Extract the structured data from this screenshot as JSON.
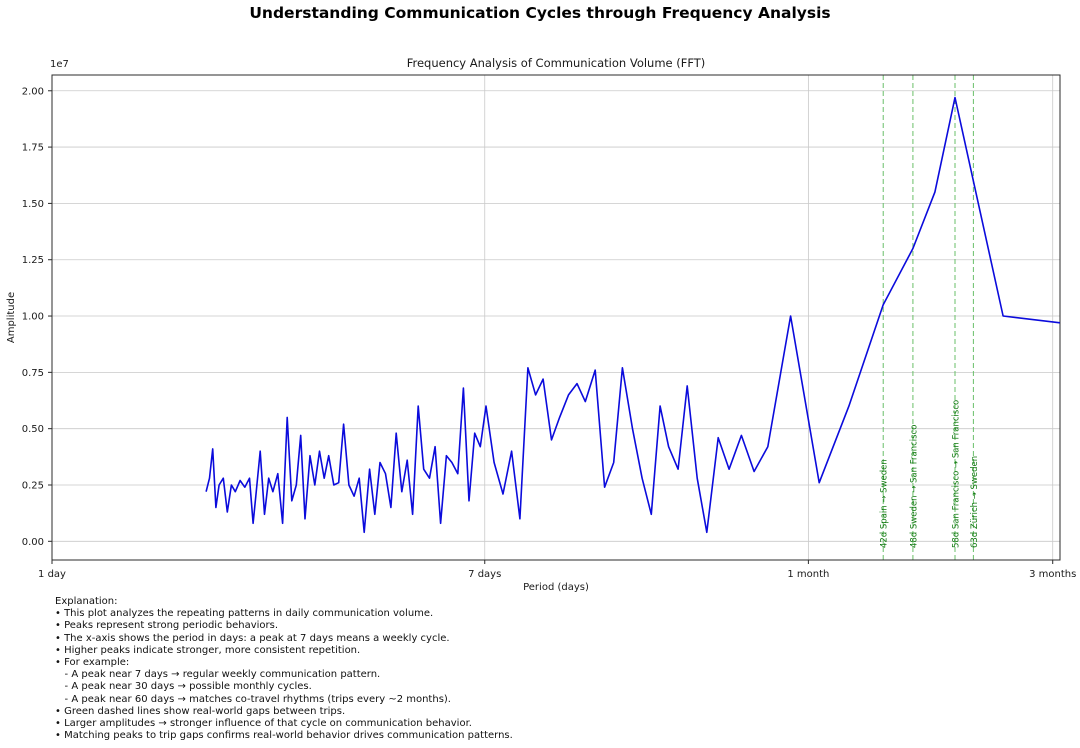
{
  "chart_data": {
    "type": "line",
    "suptitle": "Understanding Communication Cycles through Frequency Analysis",
    "title": "Frequency Analysis of Communication Volume (FFT)",
    "xlabel": "Period (days)",
    "ylabel": "Amplitude",
    "offset_label": "1e7",
    "x_scale": "log",
    "xlim": [
      1,
      93
    ],
    "ylim": [
      -0.083,
      2.07
    ],
    "grid": true,
    "x_ticks": [
      {
        "value": 1,
        "label": "1 day"
      },
      {
        "value": 7,
        "label": "7 days"
      },
      {
        "value": 30,
        "label": "1 month"
      },
      {
        "value": 90,
        "label": "3 months"
      }
    ],
    "y_ticks": [
      {
        "value": 0.0,
        "label": "0.00"
      },
      {
        "value": 0.25,
        "label": "0.25"
      },
      {
        "value": 0.5,
        "label": "0.50"
      },
      {
        "value": 0.75,
        "label": "0.75"
      },
      {
        "value": 1.0,
        "label": "1.00"
      },
      {
        "value": 1.25,
        "label": "1.25"
      },
      {
        "value": 1.5,
        "label": "1.50"
      },
      {
        "value": 1.75,
        "label": "1.75"
      },
      {
        "value": 2.0,
        "label": "2.00"
      }
    ],
    "series": [
      {
        "name": "FFT amplitude (x 1e7)",
        "periods": [
          2.0,
          2.03,
          2.06,
          2.09,
          2.12,
          2.16,
          2.2,
          2.24,
          2.28,
          2.33,
          2.38,
          2.43,
          2.47,
          2.5,
          2.55,
          2.6,
          2.65,
          2.7,
          2.76,
          2.82,
          2.88,
          2.94,
          3.0,
          3.06,
          3.12,
          3.19,
          3.26,
          3.33,
          3.4,
          3.47,
          3.55,
          3.63,
          3.71,
          3.8,
          3.89,
          3.98,
          4.07,
          4.17,
          4.27,
          4.37,
          4.48,
          4.59,
          4.7,
          4.82,
          4.94,
          5.06,
          5.19,
          5.32,
          5.46,
          5.6,
          5.74,
          5.89,
          6.04,
          6.2,
          6.36,
          6.52,
          6.69,
          6.86,
          7.04,
          7.3,
          7.6,
          7.9,
          8.2,
          8.5,
          8.8,
          9.1,
          9.45,
          9.8,
          10.2,
          10.6,
          11.0,
          11.5,
          12.0,
          12.5,
          13.0,
          13.6,
          14.2,
          14.8,
          15.4,
          16.0,
          16.7,
          17.4,
          18.2,
          19.0,
          20.0,
          21.0,
          22.2,
          23.5,
          25.0,
          27.7,
          31.5,
          36.0,
          42.0,
          48.0,
          53.0,
          58.0,
          72.0,
          93.0
        ],
        "amplitudes": [
          0.22,
          0.28,
          0.41,
          0.15,
          0.25,
          0.28,
          0.13,
          0.25,
          0.22,
          0.27,
          0.24,
          0.28,
          0.08,
          0.2,
          0.4,
          0.12,
          0.28,
          0.22,
          0.3,
          0.08,
          0.55,
          0.18,
          0.25,
          0.47,
          0.1,
          0.38,
          0.25,
          0.4,
          0.28,
          0.38,
          0.25,
          0.26,
          0.52,
          0.25,
          0.2,
          0.28,
          0.04,
          0.32,
          0.12,
          0.35,
          0.3,
          0.15,
          0.48,
          0.22,
          0.36,
          0.12,
          0.6,
          0.32,
          0.28,
          0.42,
          0.08,
          0.38,
          0.35,
          0.3,
          0.68,
          0.18,
          0.48,
          0.42,
          0.6,
          0.35,
          0.21,
          0.4,
          0.1,
          0.77,
          0.65,
          0.72,
          0.45,
          0.55,
          0.65,
          0.7,
          0.62,
          0.76,
          0.24,
          0.35,
          0.77,
          0.5,
          0.28,
          0.12,
          0.6,
          0.42,
          0.32,
          0.69,
          0.28,
          0.04,
          0.46,
          0.32,
          0.47,
          0.31,
          0.42,
          1.0,
          0.26,
          0.6,
          1.05,
          1.3,
          1.55,
          1.97,
          1.0,
          0.97
        ]
      }
    ],
    "vlines": [
      {
        "period": 42,
        "label": "42d Spain → Sweden"
      },
      {
        "period": 48,
        "label": "48d Sweden → San Francisco"
      },
      {
        "period": 58,
        "label": "58d San Francisco → San Francisco"
      },
      {
        "period": 63,
        "label": "63d Zürich → Sweden"
      }
    ],
    "colors": {
      "line": "#0b0bdc",
      "vline": "#6abf69",
      "vline_label": "#117a11",
      "grid": "#c9c9c9",
      "spine": "#2b2b2b",
      "text": "#1a1a1a"
    },
    "legend_position": "none"
  },
  "explanation": {
    "lines": [
      "Explanation:",
      "• This plot analyzes the repeating patterns in daily communication volume.",
      "• Peaks represent strong periodic behaviors.",
      "• The x-axis shows the period in days: a peak at 7 days means a weekly cycle.",
      "• Higher peaks indicate stronger, more consistent repetition.",
      "• For example:",
      "   - A peak near 7 days → regular weekly communication pattern.",
      "   - A peak near 30 days → possible monthly cycles.",
      "   - A peak near 60 days → matches co-travel rhythms (trips every ~2 months).",
      "• Green dashed lines show real-world gaps between trips.",
      "• Larger amplitudes → stronger influence of that cycle on communication behavior.",
      "• Matching peaks to trip gaps confirms real-world behavior drives communication patterns."
    ]
  }
}
